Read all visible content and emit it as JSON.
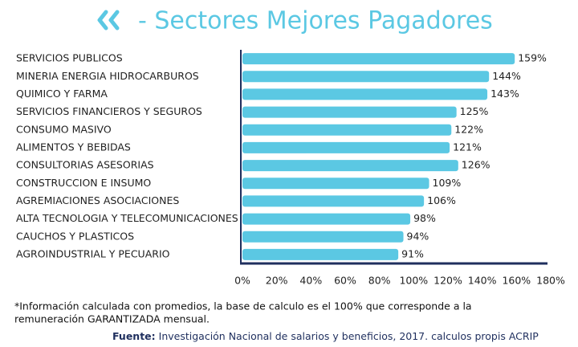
{
  "chart_data": {
    "type": "bar",
    "orientation": "horizontal",
    "title": "- Sectores Mejores Pagadores",
    "categories": [
      "SERVICIOS PUBLICOS",
      "MINERIA ENERGIA HIDROCARBUROS",
      "QUIMICO Y FARMA",
      "SERVICIOS FINANCIEROS Y SEGUROS",
      "CONSUMO MASIVO",
      "ALIMENTOS Y BEBIDAS",
      "CONSULTORIAS ASESORIAS",
      "CONSTRUCCION E INSUMO",
      "AGREMIACIONES ASOCIACIONES",
      "ALTA TECNOLOGIA Y TELECOMUNICACIONES",
      "CAUCHOS Y PLASTICOS",
      "AGROINDUSTRIAL Y PECUARIO"
    ],
    "values": [
      159,
      144,
      143,
      125,
      122,
      121,
      126,
      109,
      106,
      98,
      94,
      91
    ],
    "value_labels": [
      "159%",
      "144%",
      "143%",
      "125%",
      "122%",
      "121%",
      "126%",
      "109%",
      "106%",
      "98%",
      "94%",
      "91%"
    ],
    "color": "#5bc8e3",
    "xlim": [
      0,
      180
    ],
    "xticks": [
      {
        "value": 0,
        "label": "0%"
      },
      {
        "value": 20,
        "label": "20%"
      },
      {
        "value": 40,
        "label": "40%"
      },
      {
        "value": 60,
        "label": "60%"
      },
      {
        "value": 80,
        "label": "80%"
      },
      {
        "value": 100,
        "label": "100%"
      },
      {
        "value": 120,
        "label": "120%"
      },
      {
        "value": 140,
        "label": "140%"
      },
      {
        "value": 160,
        "label": "160%"
      },
      {
        "value": 180,
        "label": "180%"
      }
    ],
    "grid": false,
    "note": [
      "*Información calculada con promedios, la base de calculo es el 100% que corresponde a la",
      "remuneración GARANTIZADA mensual."
    ],
    "source_label": "Fuente:",
    "source": "Investigación Nacional de salarios y beneficios, 2017. calculos propis ACRIP"
  }
}
